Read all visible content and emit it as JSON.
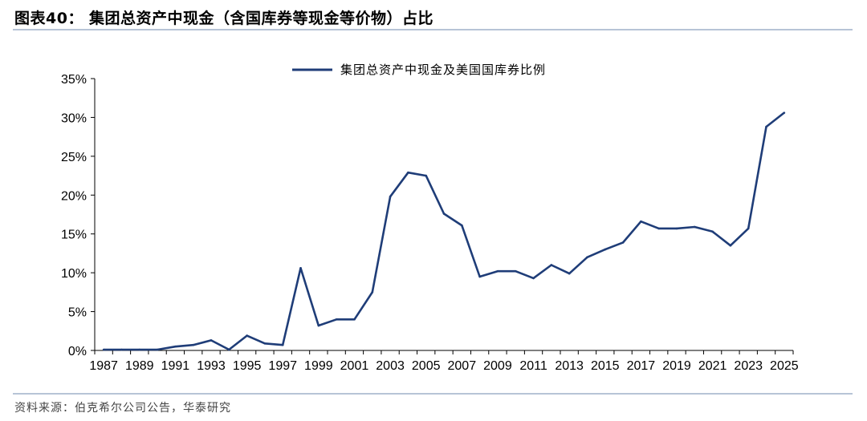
{
  "figure": {
    "title": "图表40：  集团总资产中现金（含国库券等现金等价物）占比",
    "source": "资料来源：伯克希尔公司公告，华泰研究"
  },
  "colors": {
    "line": "#1f3d78",
    "axis": "#000000",
    "rule": "#b7c4d6"
  },
  "chart_data": {
    "type": "line",
    "title": "",
    "xlabel": "",
    "ylabel": "",
    "x": [
      1987,
      1988,
      1989,
      1990,
      1991,
      1992,
      1993,
      1994,
      1995,
      1996,
      1997,
      1998,
      1999,
      2000,
      2001,
      2002,
      2003,
      2004,
      2005,
      2006,
      2007,
      2008,
      2009,
      2010,
      2011,
      2012,
      2013,
      2014,
      2015,
      2016,
      2017,
      2018,
      2019,
      2020,
      2021,
      2022,
      2023,
      2024,
      2025
    ],
    "x_tick_labels": [
      "1987",
      "1989",
      "1991",
      "1993",
      "1995",
      "1997",
      "1999",
      "2001",
      "2003",
      "2005",
      "2007",
      "2009",
      "2011",
      "2013",
      "2015",
      "2017",
      "2019",
      "2021",
      "2023",
      "2025"
    ],
    "ylim": [
      0,
      35
    ],
    "y_ticks": [
      0,
      5,
      10,
      15,
      20,
      25,
      30,
      35
    ],
    "y_tick_labels": [
      "0%",
      "5%",
      "10%",
      "15%",
      "20%",
      "25%",
      "30%",
      "35%"
    ],
    "grid": false,
    "legend_position": "top-center",
    "series": [
      {
        "name": "集团总资产中现金及美国国库券比例",
        "values": [
          0.1,
          0.1,
          0.1,
          0.1,
          0.5,
          0.7,
          1.3,
          0.1,
          1.9,
          0.9,
          0.7,
          10.6,
          3.2,
          4.0,
          4.0,
          7.5,
          19.8,
          22.9,
          22.5,
          17.6,
          16.1,
          9.5,
          10.2,
          10.2,
          9.3,
          11.0,
          9.9,
          12.0,
          13.0,
          13.9,
          16.6,
          15.7,
          15.7,
          15.9,
          15.3,
          13.5,
          15.7,
          28.8,
          30.6
        ]
      }
    ]
  }
}
